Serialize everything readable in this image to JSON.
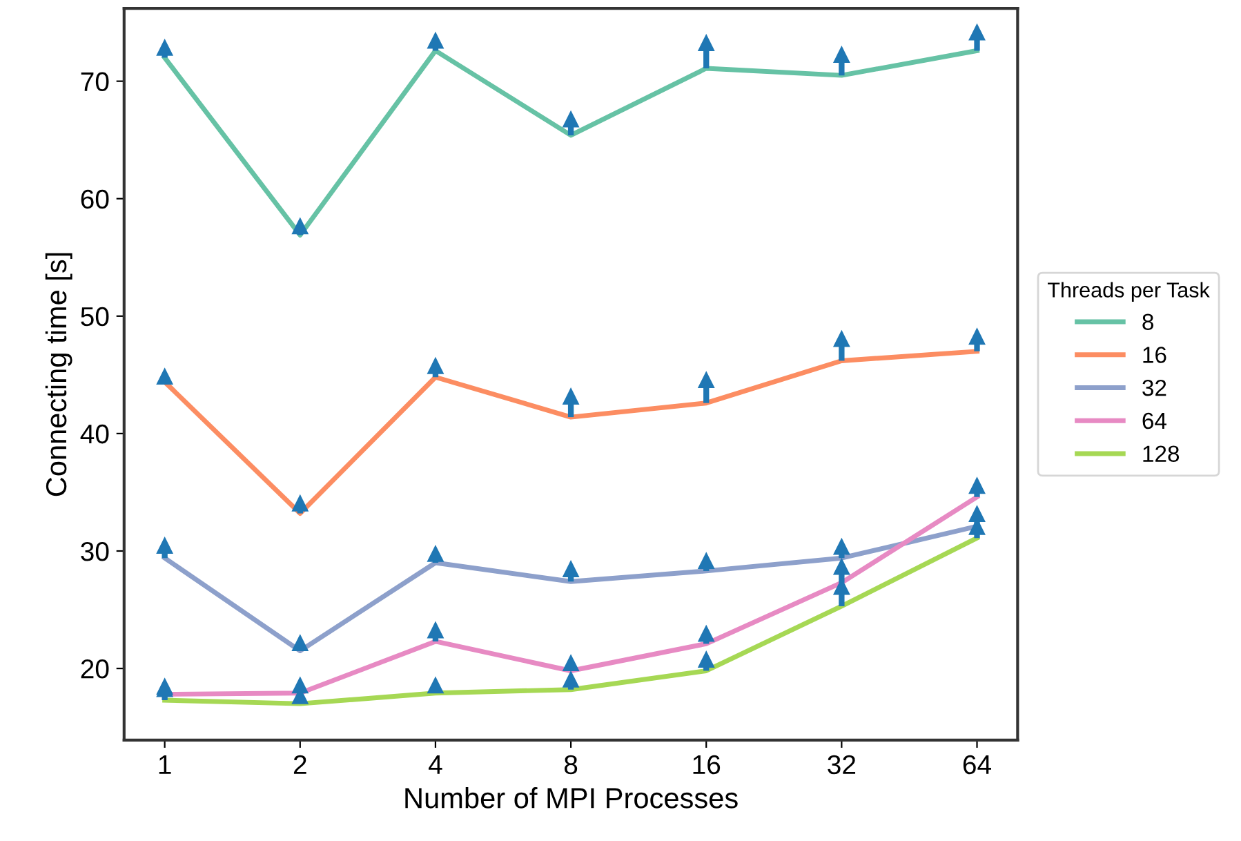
{
  "chart_data": {
    "type": "line",
    "xlabel": "Number of MPI Processes",
    "ylabel": "Connecting time [s]",
    "legend_title": "Threads per Task",
    "categories": [
      "1",
      "2",
      "4",
      "8",
      "16",
      "32",
      "64"
    ],
    "series": [
      {
        "name": "8",
        "color": "#66c2a5",
        "values": [
          72.0,
          56.9,
          72.6,
          65.4,
          71.1,
          70.5,
          72.6
        ]
      },
      {
        "name": "16",
        "color": "#fc8d62",
        "values": [
          44.4,
          33.2,
          44.8,
          41.4,
          42.6,
          46.2,
          47.0
        ]
      },
      {
        "name": "32",
        "color": "#8da0cb",
        "values": [
          29.4,
          21.5,
          29.0,
          27.4,
          28.3,
          29.4,
          32.1
        ]
      },
      {
        "name": "64",
        "color": "#e78ac3",
        "values": [
          17.8,
          17.9,
          22.3,
          19.8,
          22.1,
          27.3,
          34.6
        ]
      },
      {
        "name": "128",
        "color": "#a6d854",
        "values": [
          17.3,
          17.0,
          17.9,
          18.2,
          19.8,
          25.3,
          31.1
        ]
      },
      {
        "type": "scatter",
        "marker": "triangle",
        "color": "#1f77b4",
        "values": [
          72.9,
          57.7,
          73.5,
          66.8,
          73.3,
          72.3,
          74.2
        ],
        "errors": [
          [
            72.0,
            72.9
          ],
          [
            56.9,
            57.7
          ],
          [
            72.6,
            73.5
          ],
          [
            65.4,
            66.8
          ],
          [
            71.1,
            73.3
          ],
          [
            70.5,
            72.3
          ],
          [
            72.6,
            74.2
          ]
        ]
      },
      {
        "type": "scatter",
        "marker": "triangle",
        "color": "#1f77b4",
        "values": [
          44.9,
          34.1,
          45.8,
          43.2,
          44.6,
          48.1,
          48.3
        ],
        "errors": [
          [
            44.4,
            44.9
          ],
          [
            33.2,
            34.1
          ],
          [
            44.8,
            45.8
          ],
          [
            41.4,
            43.2
          ],
          [
            42.6,
            44.6
          ],
          [
            46.2,
            48.1
          ],
          [
            47.0,
            48.3
          ]
        ]
      },
      {
        "type": "scatter",
        "marker": "triangle",
        "color": "#1f77b4",
        "values": [
          30.5,
          22.2,
          29.8,
          28.5,
          29.2,
          30.4,
          33.2
        ],
        "errors": [
          [
            29.4,
            30.5
          ],
          [
            21.5,
            22.2
          ],
          [
            29.0,
            29.8
          ],
          [
            27.4,
            28.5
          ],
          [
            28.3,
            29.2
          ],
          [
            29.4,
            30.4
          ],
          [
            32.1,
            33.2
          ]
        ]
      },
      {
        "type": "scatter",
        "marker": "triangle",
        "color": "#1f77b4",
        "values": [
          18.5,
          18.6,
          23.3,
          20.5,
          23.0,
          28.7,
          35.6
        ],
        "errors": [
          [
            17.8,
            18.5
          ],
          [
            17.9,
            18.6
          ],
          [
            22.3,
            23.3
          ],
          [
            19.8,
            20.5
          ],
          [
            22.1,
            23.0
          ],
          [
            27.3,
            28.7
          ],
          [
            34.6,
            35.6
          ]
        ]
      },
      {
        "type": "scatter",
        "marker": "triangle",
        "color": "#1f77b4",
        "values": [
          18.3,
          17.7,
          18.6,
          19.1,
          20.8,
          27.0,
          32.1
        ],
        "errors": [
          [
            17.3,
            18.3
          ],
          [
            17.0,
            17.7
          ],
          [
            17.9,
            18.6
          ],
          [
            18.2,
            19.1
          ],
          [
            19.8,
            20.8
          ],
          [
            25.3,
            27.0
          ],
          [
            31.1,
            32.1
          ]
        ]
      }
    ],
    "ylim": [
      13.9,
      76.2
    ],
    "yticks": [
      20,
      30,
      40,
      50,
      60,
      70
    ],
    "grid": false,
    "legend": "right"
  }
}
